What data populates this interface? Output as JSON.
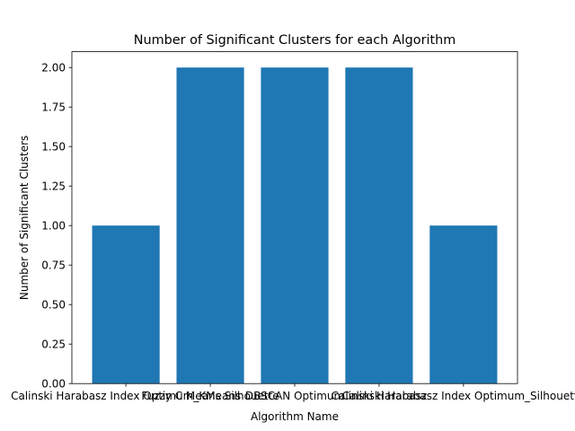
{
  "chart_data": {
    "type": "bar",
    "title": "Number of Significant Clusters for each Algorithm",
    "xlabel": "Algorithm Name",
    "ylabel": "Number of Significant Clusters",
    "categories": [
      "Calinski Harabasz Index Optimum_KMeans",
      "Fuzzy C Means Silhouette",
      "DBSCAN Optimum",
      "Calinski Harabasz",
      "Calinski Harabasz Index Optimum_Silhouette"
    ],
    "values": [
      1,
      2,
      2,
      2,
      1
    ],
    "ylim": [
      0,
      2.1
    ],
    "yticks": [
      "0.00",
      "0.25",
      "0.50",
      "0.75",
      "1.00",
      "1.25",
      "1.50",
      "1.75",
      "2.00"
    ],
    "bar_color": "#1f77b4",
    "grid": false
  }
}
